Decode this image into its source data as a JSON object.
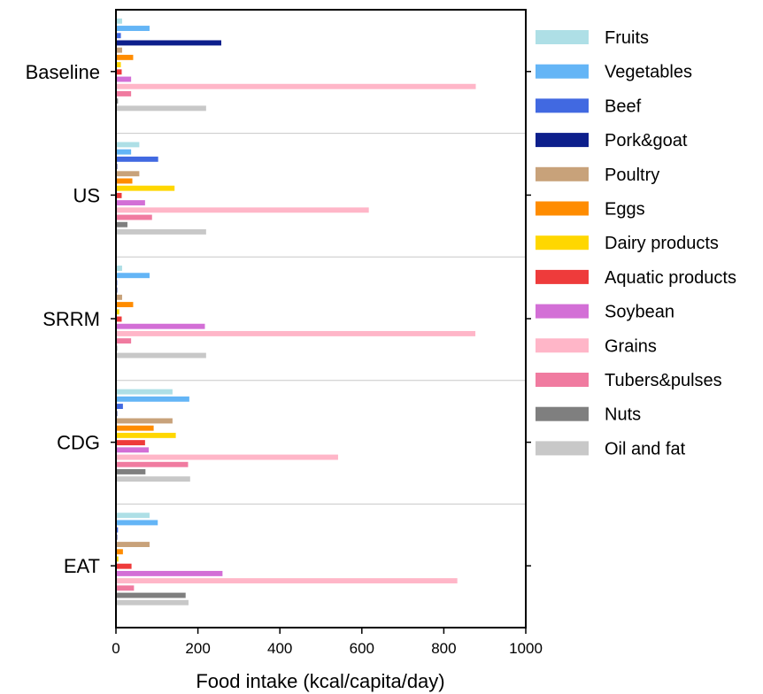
{
  "chart_data": {
    "type": "bar",
    "orientation": "horizontal",
    "title": "",
    "xlabel": "Food intake (kcal/capita/day)",
    "ylabel": "",
    "xlim": [
      0,
      1000
    ],
    "xticks": [
      "0",
      "200",
      "400",
      "600",
      "800",
      "1000"
    ],
    "categories": [
      "Baseline",
      "US",
      "SRRM",
      "CDG",
      "EAT"
    ],
    "legend_position": "right",
    "grid": false,
    "series": [
      {
        "name": "Fruits",
        "color": "#aedfe6",
        "values": [
          15,
          57,
          15,
          138,
          82
        ]
      },
      {
        "name": "Vegetables",
        "color": "#64b5f6",
        "values": [
          82,
          37,
          82,
          179,
          102
        ]
      },
      {
        "name": "Beef",
        "color": "#4169e1",
        "values": [
          12,
          103,
          3,
          17,
          5
        ]
      },
      {
        "name": "Pork&goat",
        "color": "#0d1f8c",
        "values": [
          257,
          3,
          3,
          3,
          3
        ]
      },
      {
        "name": "Poultry",
        "color": "#c8a27a",
        "values": [
          15,
          57,
          15,
          138,
          82
        ]
      },
      {
        "name": "Eggs",
        "color": "#ff8c00",
        "values": [
          42,
          40,
          42,
          92,
          17
        ]
      },
      {
        "name": "Dairy products",
        "color": "#ffd700",
        "values": [
          12,
          143,
          8,
          146,
          6
        ]
      },
      {
        "name": "Aquatic products",
        "color": "#ee3b3b",
        "values": [
          14,
          14,
          14,
          71,
          38
        ]
      },
      {
        "name": "Soybean",
        "color": "#d36fd6",
        "values": [
          37,
          71,
          217,
          80,
          260
        ]
      },
      {
        "name": "Grains",
        "color": "#ffb6c8",
        "values": [
          878,
          617,
          877,
          542,
          833
        ]
      },
      {
        "name": "Tubers&pulses",
        "color": "#f07ba0",
        "values": [
          37,
          88,
          37,
          176,
          44
        ]
      },
      {
        "name": "Nuts",
        "color": "#7f7f7f",
        "values": [
          5,
          28,
          3,
          72,
          170
        ]
      },
      {
        "name": "Oil and fat",
        "color": "#c8c8c8",
        "values": [
          220,
          220,
          220,
          181,
          177
        ]
      }
    ]
  }
}
